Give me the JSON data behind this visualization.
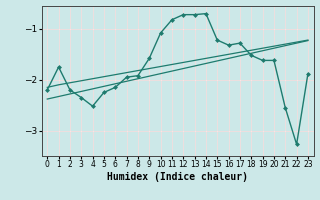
{
  "xlabel": "Humidex (Indice chaleur)",
  "background_color": "#cce8e8",
  "line_color": "#1e7b6e",
  "xlim": [
    -0.5,
    23.5
  ],
  "ylim": [
    -3.5,
    -0.55
  ],
  "yticks": [
    -3,
    -2,
    -1
  ],
  "xticks": [
    0,
    1,
    2,
    3,
    4,
    5,
    6,
    7,
    8,
    9,
    10,
    11,
    12,
    13,
    14,
    15,
    16,
    17,
    18,
    19,
    20,
    21,
    22,
    23
  ],
  "line1_x": [
    0,
    1,
    2,
    3,
    4,
    5,
    6,
    7,
    8,
    9,
    10,
    11,
    12,
    13,
    14,
    15,
    16,
    17,
    18,
    19,
    20,
    21,
    22,
    23
  ],
  "line1_y": [
    -2.2,
    -1.75,
    -2.2,
    -2.35,
    -2.52,
    -2.25,
    -2.15,
    -1.95,
    -1.92,
    -1.58,
    -1.08,
    -0.82,
    -0.72,
    -0.72,
    -0.7,
    -1.22,
    -1.32,
    -1.28,
    -1.52,
    -1.62,
    -1.62,
    -2.55,
    -3.27,
    -1.88
  ],
  "line2_x": [
    0,
    1,
    2,
    3,
    4,
    5,
    6,
    7,
    8,
    9,
    10,
    11,
    12,
    13,
    14,
    15,
    16,
    17,
    18,
    19,
    20,
    21,
    22,
    23
  ],
  "line2_y": [
    -2.15,
    -2.1,
    -2.06,
    -2.02,
    -1.98,
    -1.94,
    -1.9,
    -1.86,
    -1.82,
    -1.78,
    -1.74,
    -1.7,
    -1.66,
    -1.62,
    -1.58,
    -1.54,
    -1.5,
    -1.46,
    -1.42,
    -1.38,
    -1.34,
    -1.3,
    -1.26,
    -1.22
  ],
  "line3_x": [
    0,
    1,
    2,
    3,
    4,
    5,
    6,
    7,
    8,
    9,
    10,
    11,
    12,
    13,
    14,
    15,
    16,
    17,
    18,
    19,
    20,
    21,
    22,
    23
  ],
  "line3_y": [
    -2.38,
    -2.33,
    -2.28,
    -2.23,
    -2.18,
    -2.13,
    -2.08,
    -2.03,
    -1.98,
    -1.93,
    -1.88,
    -1.83,
    -1.78,
    -1.73,
    -1.68,
    -1.63,
    -1.58,
    -1.53,
    -1.48,
    -1.43,
    -1.38,
    -1.33,
    -1.28,
    -1.23
  ]
}
